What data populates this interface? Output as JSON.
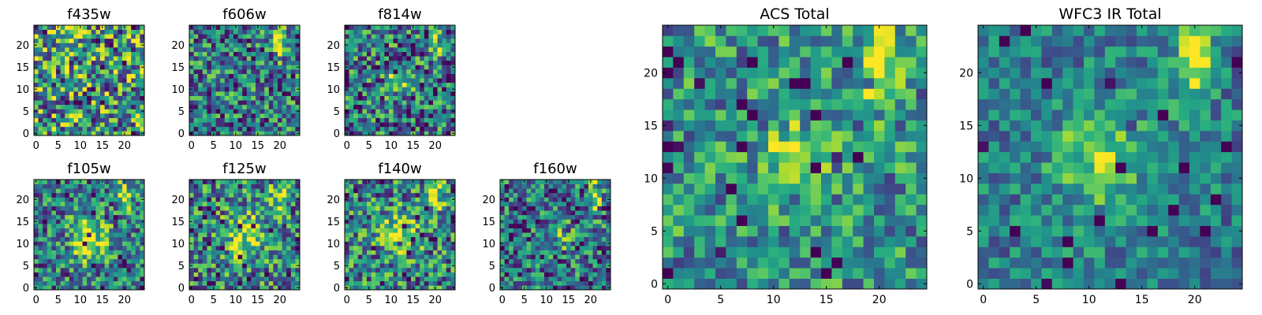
{
  "figure": {
    "background": "#ffffff"
  },
  "colormap": {
    "name": "viridis",
    "stops": [
      "#440154",
      "#472d7b",
      "#3b528b",
      "#2c728e",
      "#21918c",
      "#28ae80",
      "#5ec962",
      "#addc30",
      "#fde725"
    ]
  },
  "chart_data": [
    {
      "id": "f435w",
      "type": "heatmap",
      "title": "f435w",
      "grid_size": 25,
      "xlim": [
        0,
        24
      ],
      "ylim": [
        0,
        24
      ],
      "xticks": [
        0,
        5,
        10,
        15,
        20
      ],
      "yticks": [
        0,
        5,
        10,
        15,
        20
      ],
      "grid": false,
      "description": "uniform noise, no visible source",
      "hotspots": [],
      "noise": 0.5,
      "base": 0.55,
      "seed": 11
    },
    {
      "id": "f606w",
      "type": "heatmap",
      "title": "f606w",
      "grid_size": 25,
      "xlim": [
        0,
        24
      ],
      "ylim": [
        0,
        24
      ],
      "xticks": [
        0,
        5,
        10,
        15,
        20
      ],
      "yticks": [
        0,
        5,
        10,
        15,
        20
      ],
      "grid": false,
      "hotspots": [
        {
          "x": 20,
          "y": 21,
          "sx": 1.0,
          "sy": 2.5,
          "amp": 0.6
        }
      ],
      "noise": 0.4,
      "base": 0.42,
      "seed": 23
    },
    {
      "id": "f814w",
      "type": "heatmap",
      "title": "f814w",
      "grid_size": 25,
      "xlim": [
        0,
        24
      ],
      "ylim": [
        0,
        24
      ],
      "xticks": [
        0,
        5,
        10,
        15,
        20
      ],
      "yticks": [
        0,
        5,
        10,
        15,
        20
      ],
      "grid": false,
      "hotspots": [
        {
          "x": 12,
          "y": 12,
          "sx": 2.0,
          "sy": 2.0,
          "amp": 0.4
        },
        {
          "x": 20,
          "y": 21,
          "sx": 1.0,
          "sy": 2.5,
          "amp": 0.5
        }
      ],
      "noise": 0.42,
      "base": 0.4,
      "seed": 37
    },
    {
      "id": "f105w",
      "type": "heatmap",
      "title": "f105w",
      "grid_size": 25,
      "xlim": [
        0,
        24
      ],
      "ylim": [
        0,
        24
      ],
      "xticks": [
        0,
        5,
        10,
        15,
        20
      ],
      "yticks": [
        0,
        5,
        10,
        15,
        20
      ],
      "grid": false,
      "hotspots": [
        {
          "x": 12,
          "y": 11,
          "sx": 3.0,
          "sy": 4.0,
          "amp": 0.5
        },
        {
          "x": 20,
          "y": 21,
          "sx": 1.2,
          "sy": 2.5,
          "amp": 0.5
        }
      ],
      "noise": 0.38,
      "base": 0.4,
      "seed": 41
    },
    {
      "id": "f125w",
      "type": "heatmap",
      "title": "f125w",
      "grid_size": 25,
      "xlim": [
        0,
        24
      ],
      "ylim": [
        0,
        24
      ],
      "xticks": [
        0,
        5,
        10,
        15,
        20
      ],
      "yticks": [
        0,
        5,
        10,
        15,
        20
      ],
      "grid": false,
      "hotspots": [
        {
          "x": 12,
          "y": 12,
          "sx": 3.0,
          "sy": 3.5,
          "amp": 0.45
        },
        {
          "x": 20,
          "y": 21,
          "sx": 1.2,
          "sy": 2.5,
          "amp": 0.5
        }
      ],
      "noise": 0.4,
      "base": 0.45,
      "seed": 53
    },
    {
      "id": "f140w",
      "type": "heatmap",
      "title": "f140w",
      "grid_size": 25,
      "xlim": [
        0,
        24
      ],
      "ylim": [
        0,
        24
      ],
      "xticks": [
        0,
        5,
        10,
        15,
        20
      ],
      "yticks": [
        0,
        5,
        10,
        15,
        20
      ],
      "grid": false,
      "hotspots": [
        {
          "x": 12,
          "y": 12,
          "sx": 3.0,
          "sy": 3.5,
          "amp": 0.45
        },
        {
          "x": 20,
          "y": 21,
          "sx": 1.2,
          "sy": 2.5,
          "amp": 0.55
        }
      ],
      "noise": 0.4,
      "base": 0.45,
      "seed": 67
    },
    {
      "id": "f160w",
      "type": "heatmap",
      "title": "f160w",
      "grid_size": 25,
      "xlim": [
        0,
        24
      ],
      "ylim": [
        0,
        24
      ],
      "xticks": [
        0,
        5,
        10,
        15,
        20
      ],
      "yticks": [
        0,
        5,
        10,
        15,
        20
      ],
      "grid": false,
      "hotspots": [
        {
          "x": 12,
          "y": 12,
          "sx": 2.5,
          "sy": 3.0,
          "amp": 0.25
        },
        {
          "x": 21,
          "y": 21,
          "sx": 1.0,
          "sy": 2.5,
          "amp": 0.55
        }
      ],
      "noise": 0.4,
      "base": 0.38,
      "seed": 71
    },
    {
      "id": "acs_total",
      "type": "heatmap",
      "title": "ACS Total",
      "grid_size": 25,
      "xlim": [
        0,
        24
      ],
      "ylim": [
        0,
        24
      ],
      "xticks": [
        0,
        5,
        10,
        15,
        20
      ],
      "yticks": [
        0,
        5,
        10,
        15,
        20
      ],
      "grid": false,
      "hotspots": [
        {
          "x": 12,
          "y": 12,
          "sx": 2.0,
          "sy": 2.0,
          "amp": 0.45
        },
        {
          "x": 20,
          "y": 21,
          "sx": 1.2,
          "sy": 2.8,
          "amp": 0.6
        }
      ],
      "noise": 0.32,
      "base": 0.5,
      "seed": 83
    },
    {
      "id": "wfc3_ir_total",
      "type": "heatmap",
      "title": "WFC3 IR Total",
      "grid_size": 25,
      "xlim": [
        0,
        24
      ],
      "ylim": [
        0,
        24
      ],
      "xticks": [
        0,
        5,
        10,
        15,
        20
      ],
      "yticks": [
        0,
        5,
        10,
        15,
        20
      ],
      "grid": false,
      "hotspots": [
        {
          "x": 11,
          "y": 12,
          "sx": 3.0,
          "sy": 3.5,
          "amp": 0.4
        },
        {
          "x": 20,
          "y": 21,
          "sx": 1.2,
          "sy": 2.8,
          "amp": 0.55
        }
      ],
      "noise": 0.24,
      "base": 0.42,
      "seed": 97
    }
  ]
}
